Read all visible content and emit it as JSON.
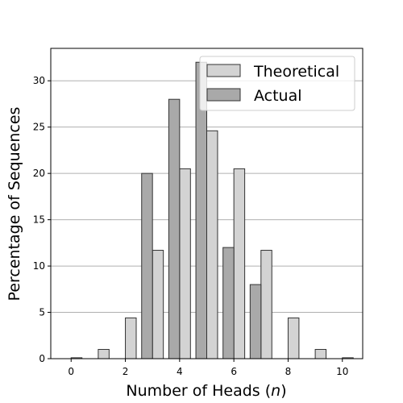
{
  "chart_data": {
    "type": "bar",
    "title": "",
    "xlabel": "Number of Heads (",
    "xlabel_var": "n",
    "xlabel_suffix": ")",
    "ylabel": "Percentage of Sequences",
    "categories": [
      0,
      1,
      2,
      3,
      4,
      5,
      6,
      7,
      8,
      9,
      10
    ],
    "x_ticks": [
      "0",
      "2",
      "4",
      "6",
      "8",
      "10"
    ],
    "y_ticks": [
      "0",
      "5",
      "10",
      "15",
      "20",
      "25",
      "30"
    ],
    "xlim": [
      -0.75,
      10.75
    ],
    "ylim": [
      0,
      33.5
    ],
    "grid": "horizontal",
    "legend_position": "top-right",
    "series": [
      {
        "name": "Theoretical",
        "color": "#d3d3d3",
        "offset": 0.2,
        "values": [
          0.1,
          1.0,
          4.4,
          11.7,
          20.5,
          24.6,
          20.5,
          11.7,
          4.4,
          1.0,
          0.1
        ]
      },
      {
        "name": "Actual",
        "color": "#a9a9a9",
        "offset": -0.2,
        "values": [
          0,
          0,
          0,
          20,
          28,
          32,
          12,
          8,
          0,
          0,
          0
        ]
      }
    ]
  }
}
